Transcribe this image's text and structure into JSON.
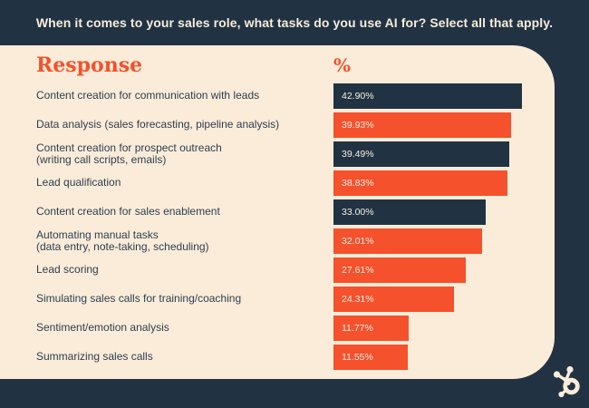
{
  "title": "When it comes to your sales role, what tasks do you use AI for? Select all that apply.",
  "panel": {
    "col_response": "Response",
    "col_percent": "%"
  },
  "branding": {
    "logo_icon": "hubspot-sprocket-icon"
  },
  "colors": {
    "navy": "#213343",
    "orange": "#f4512c",
    "cream": "#fbecd9",
    "title_text": "#f8ecdb",
    "label_text": "#2c3e50",
    "bar_value_text": "#f7efe3"
  },
  "chart_data": {
    "type": "bar",
    "orientation": "horizontal",
    "title": "When it comes to your sales role, what tasks do you use AI for? Select all that apply.",
    "xlabel": "%",
    "ylabel": "Response",
    "grid": false,
    "legend": "none",
    "xlim": [
      0,
      45
    ],
    "categories": [
      "Content creation for communication with leads",
      "Data analysis (sales forecasting, pipeline analysis)",
      "Content creation for prospect outreach\n(writing call scripts, emails)",
      "Lead qualification",
      "Content creation for sales enablement",
      "Automating manual tasks\n(data entry, note-taking, scheduling)",
      "Lead scoring",
      "Simulating sales calls for training/coaching",
      "Sentiment/emotion analysis",
      "Summarizing sales calls"
    ],
    "values": [
      42.9,
      39.93,
      39.49,
      38.83,
      33.0,
      32.01,
      27.61,
      24.31,
      11.77,
      11.55
    ],
    "value_labels": [
      "42.90%",
      "39.93%",
      "39.49%",
      "38.83%",
      "33.00%",
      "32.01%",
      "27.61%",
      "24.31%",
      "11.77%",
      "11.55%"
    ],
    "bar_colors": [
      "navy",
      "orange",
      "navy",
      "orange",
      "navy",
      "orange",
      "orange",
      "orange",
      "orange",
      "orange"
    ]
  }
}
